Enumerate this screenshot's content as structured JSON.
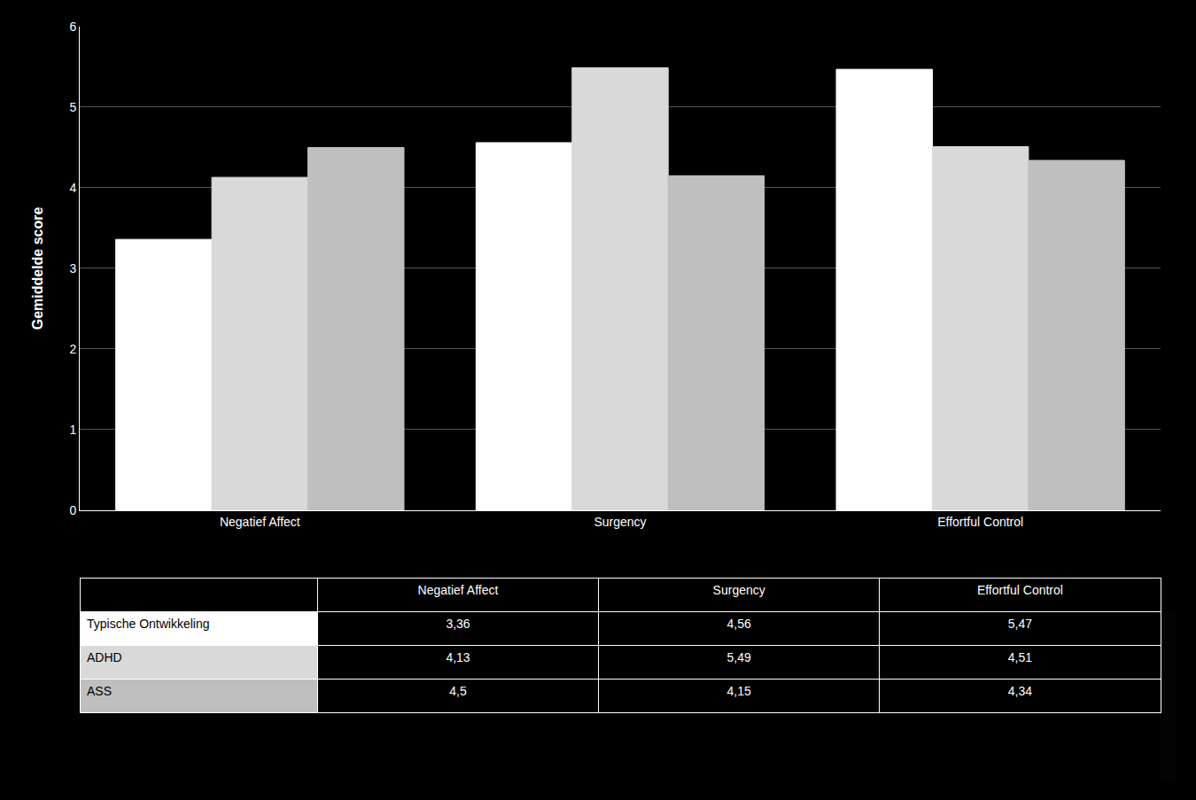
{
  "chart_data": {
    "type": "bar",
    "categories": [
      "Negatief Affect",
      "Surgency",
      "Effortful Control"
    ],
    "series": [
      {
        "name": "Typische Ontwikkeling",
        "color": "#ffffff",
        "values": [
          3.36,
          4.56,
          5.47
        ],
        "value_labels": [
          "3,36",
          "4,56",
          "5,47"
        ]
      },
      {
        "name": "ADHD",
        "color": "#d9d9d9",
        "values": [
          4.13,
          5.49,
          4.51
        ],
        "value_labels": [
          "4,13",
          "5,49",
          "4,51"
        ]
      },
      {
        "name": "ASS",
        "color": "#bfbfbf",
        "values": [
          4.5,
          4.15,
          4.34
        ],
        "value_labels": [
          "4,5",
          "4,15",
          "4,34"
        ]
      }
    ],
    "ylabel": "Gemiddelde score",
    "ylim": [
      0,
      6
    ],
    "yticks": [
      0,
      1,
      2,
      3,
      4,
      5,
      6
    ],
    "grid": true
  }
}
